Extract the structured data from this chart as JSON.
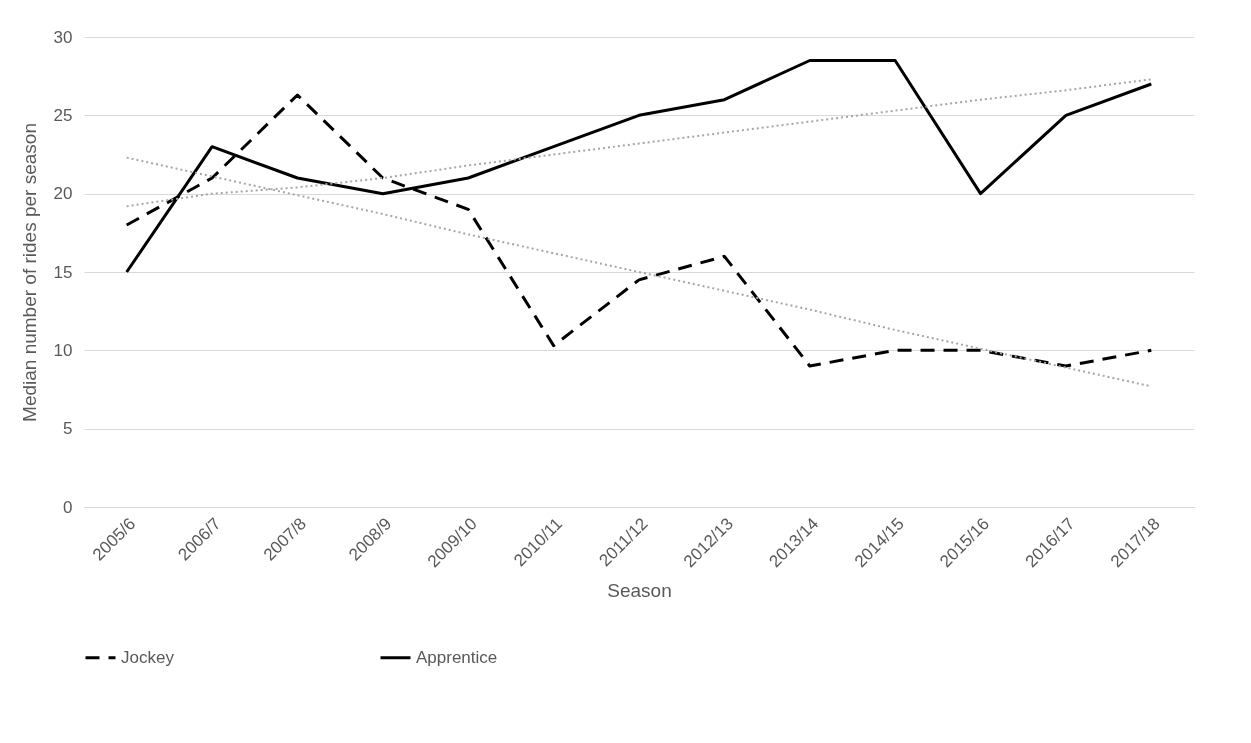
{
  "chart_data": {
    "type": "line",
    "xlabel": "Season",
    "ylabel": "Median number of rides per season",
    "categories": [
      "2005/6",
      "2006/7",
      "2007/8",
      "2008/9",
      "2009/10",
      "2010/11",
      "2011/12",
      "2012/13",
      "2013/14",
      "2014/15",
      "2015/16",
      "2016/17",
      "2017/18"
    ],
    "series": [
      {
        "name": "Jockey",
        "color": "#000000",
        "line_style": "dashed",
        "values": [
          18,
          21,
          26.3,
          21,
          19,
          10.3,
          14.5,
          16,
          9,
          10,
          10,
          9,
          10
        ]
      },
      {
        "name": "Apprentice",
        "color": "#000000",
        "line_style": "solid",
        "values": [
          15,
          23,
          21,
          20,
          21,
          23,
          25,
          26,
          28.5,
          28.5,
          20,
          25,
          27
        ]
      },
      {
        "color": "#a6a6a6",
        "line_style": "dotted",
        "values": [
          22.3,
          21.1,
          19.9,
          18.7,
          17.4,
          16.2,
          15.0,
          13.8,
          12.6,
          11.3,
          10.1,
          8.9,
          7.7
        ]
      },
      {
        "color": "#a6a6a6",
        "line_style": "dotted",
        "values": [
          19.2,
          20.0,
          20.4,
          21.0,
          21.8,
          22.5,
          23.2,
          23.9,
          24.6,
          25.3,
          26.0,
          26.6,
          27.3
        ]
      }
    ],
    "ylim": [
      0,
      30
    ],
    "yticks": [
      0,
      5,
      10,
      15,
      20,
      25,
      30
    ],
    "grid": "y",
    "legend": "bottom",
    "marker": "none"
  }
}
